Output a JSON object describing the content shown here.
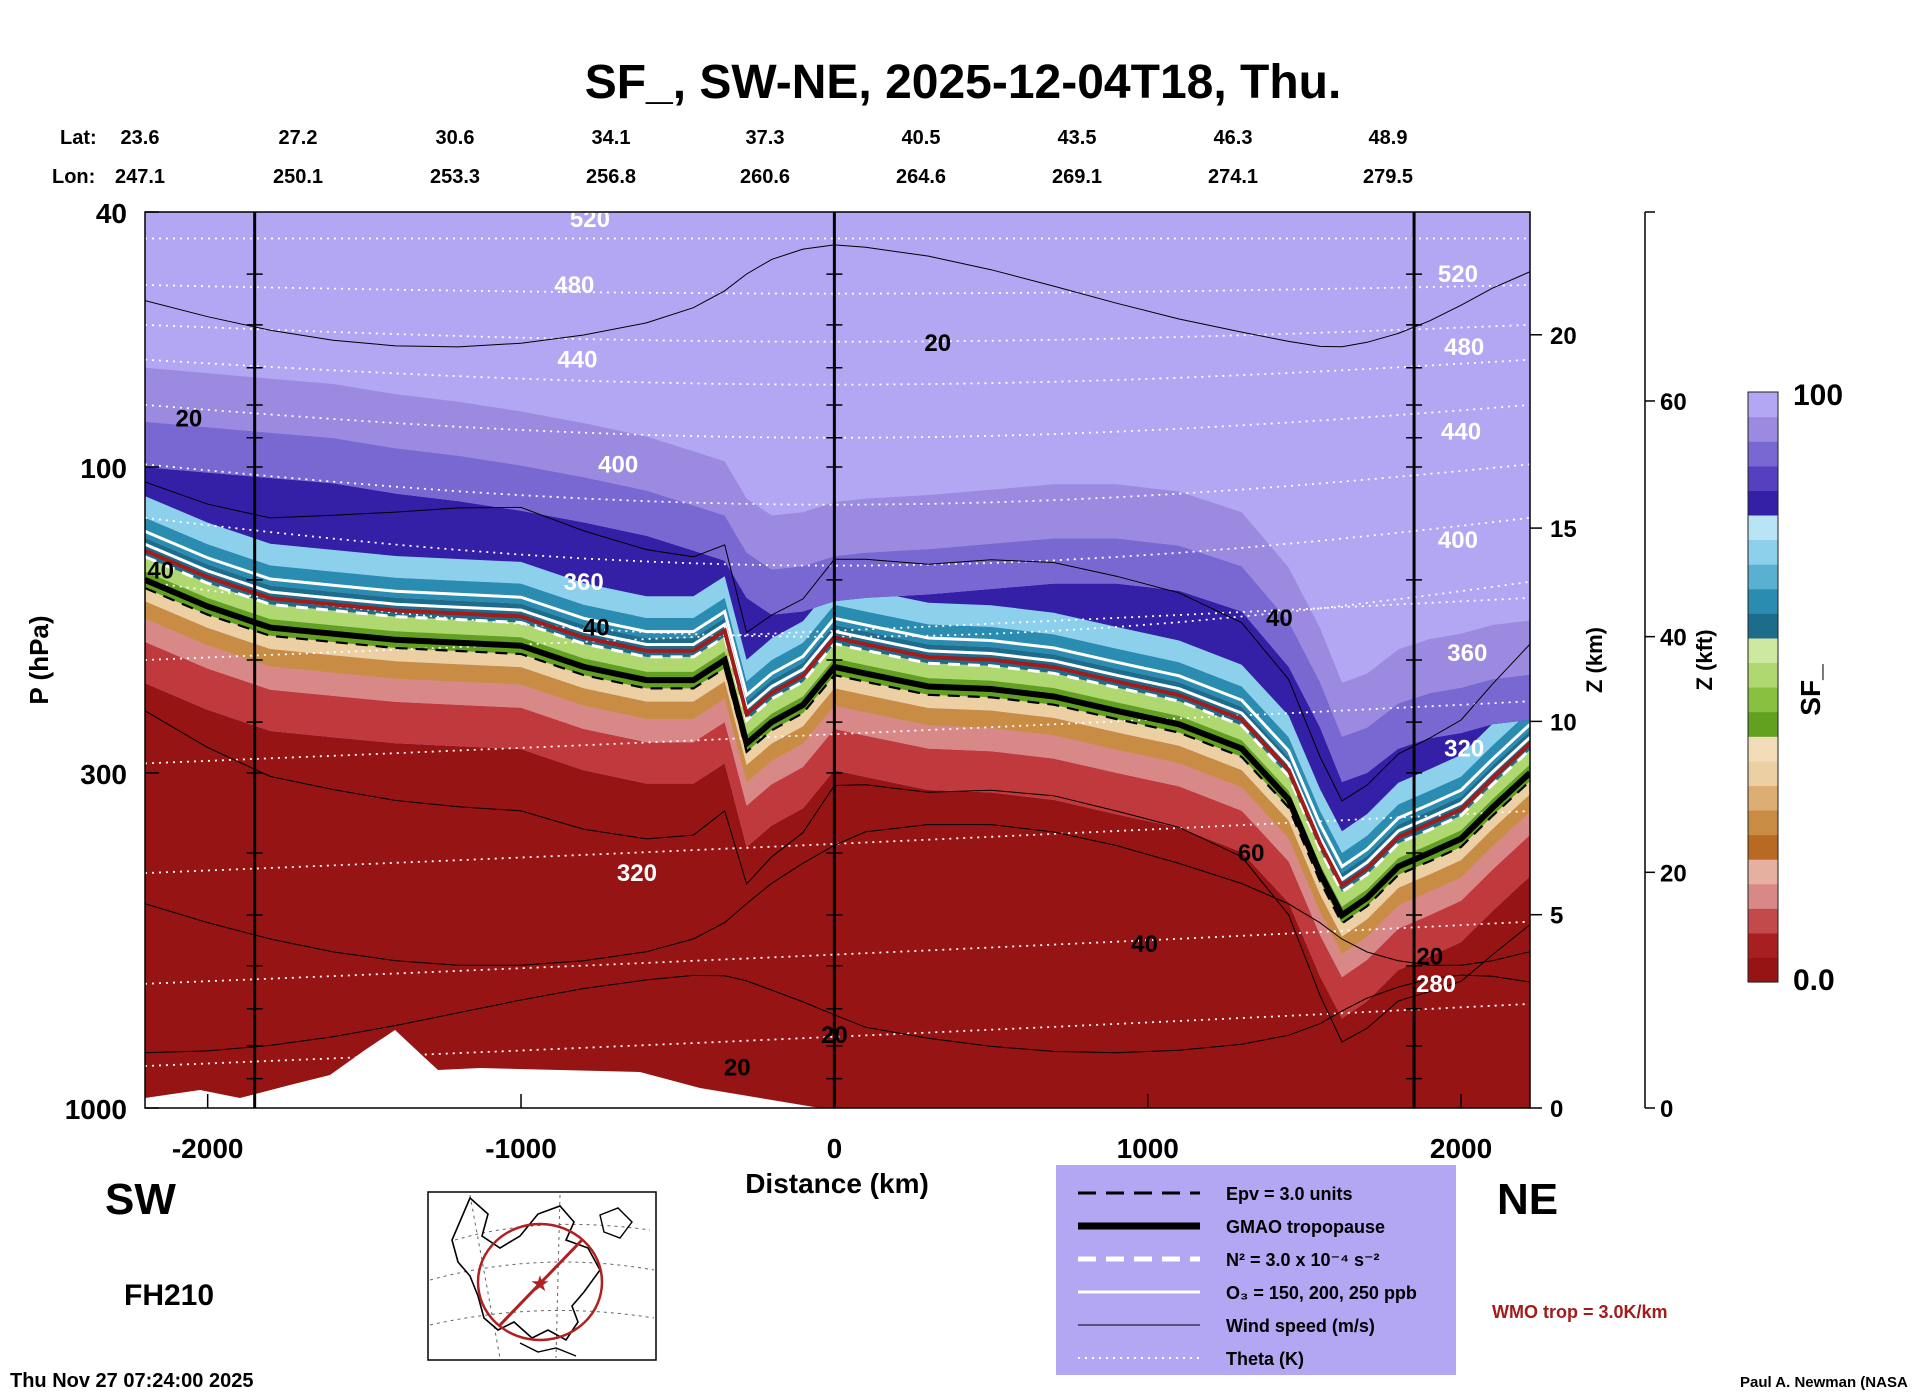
{
  "page": {
    "run_timestamp": "Thu Nov 27 07:24:00 2025",
    "credit": "Paul A. Newman (NASA",
    "forecast_hour": "FH210",
    "direction_left": "SW",
    "direction_right": "NE",
    "wmo_label": "WMO trop = 3.0K/km"
  },
  "legend": {
    "items": [
      {
        "label": "Epv = 3.0 units",
        "style": "dashed-black"
      },
      {
        "label": "GMAO tropopause",
        "style": "thick-black"
      },
      {
        "label": "N² = 3.0 x 10⁻⁴ s⁻²",
        "style": "dashed-white"
      },
      {
        "label": "O₃ = 150, 200, 250 ppb",
        "style": "solid-white"
      },
      {
        "label": "Wind speed (m/s)",
        "style": "thin-black"
      },
      {
        "label": "Theta (K)",
        "style": "dotted-white"
      }
    ],
    "background": "#b3a6f2"
  },
  "colors": {
    "tropopause_wmo": "#a31c1c",
    "background_upper": "#b3a6f2",
    "background_lower": "#971414"
  },
  "chart_data": {
    "type": "heatmap",
    "title": "SF_, SW-NE, 2025-12-04T18, Thu.",
    "xlabel": "Distance (km)",
    "ylabel": "P (hPa)",
    "y2label": "Z (km)",
    "y3label": "Z (kft)",
    "xlim": [
      -2200,
      2220
    ],
    "ylim": [
      1000,
      40
    ],
    "y_scale": "log",
    "x_ticks": [
      -2000,
      -1000,
      0,
      1000,
      2000
    ],
    "y_ticks": [
      1000,
      300,
      100,
      40
    ],
    "z_km_ticks": [
      0,
      5,
      10,
      15,
      20
    ],
    "z_kft_ticks": [
      0,
      20,
      40,
      60
    ],
    "lat_label": "Lat:",
    "lon_label": "Lon:",
    "latitudes": [
      "23.6",
      "27.2",
      "30.6",
      "34.1",
      "37.3",
      "40.5",
      "43.5",
      "46.3",
      "48.9"
    ],
    "longitudes": [
      "247.1",
      "250.1",
      "253.3",
      "256.8",
      "260.6",
      "264.6",
      "269.1",
      "274.1",
      "279.5"
    ],
    "vertical_lines_km": [
      -1850,
      0,
      1850
    ],
    "colorbar": {
      "label": "SF_",
      "min_label": "0.0",
      "max_label": "100",
      "stops": [
        "#971414",
        "#a81f1f",
        "#c34a4a",
        "#d98888",
        "#e6b0a0",
        "#b86a22",
        "#c98c44",
        "#dcae74",
        "#ecd0a4",
        "#f2dcb8",
        "#62a020",
        "#88c040",
        "#b0d870",
        "#cde9a0",
        "#1e6c8c",
        "#2a8cb0",
        "#5ab0d0",
        "#8cd0ec",
        "#b8e4f6",
        "#3420a6",
        "#5640c0",
        "#7a68d2",
        "#9b8ae0",
        "#b3a6f2"
      ]
    },
    "theta_labels": [
      {
        "text": "520",
        "x": -780,
        "p": 41
      },
      {
        "text": "480",
        "x": -830,
        "p": 52
      },
      {
        "text": "440",
        "x": -820,
        "p": 68
      },
      {
        "text": "400",
        "x": -690,
        "p": 99
      },
      {
        "text": "360",
        "x": -800,
        "p": 151
      },
      {
        "text": "320",
        "x": -630,
        "p": 430
      },
      {
        "text": "520",
        "x": 1990,
        "p": 50
      },
      {
        "text": "480",
        "x": 2010,
        "p": 65
      },
      {
        "text": "440",
        "x": 2000,
        "p": 88
      },
      {
        "text": "400",
        "x": 1990,
        "p": 130
      },
      {
        "text": "360",
        "x": 2020,
        "p": 195
      },
      {
        "text": "320",
        "x": 2010,
        "p": 275
      },
      {
        "text": "280",
        "x": 1920,
        "p": 640
      }
    ],
    "wind_labels": [
      {
        "text": "20",
        "x": -2060,
        "p": 84
      },
      {
        "text": "20",
        "x": 330,
        "p": 64
      },
      {
        "text": "40",
        "x": -2150,
        "p": 145
      },
      {
        "text": "40",
        "x": -760,
        "p": 178
      },
      {
        "text": "40",
        "x": 1420,
        "p": 172
      },
      {
        "text": "60",
        "x": 1330,
        "p": 400
      },
      {
        "text": "40",
        "x": 990,
        "p": 555
      },
      {
        "text": "20",
        "x": 1900,
        "p": 580
      },
      {
        "text": "20",
        "x": 0,
        "p": 770
      },
      {
        "text": "20",
        "x": -310,
        "p": 865
      }
    ]
  }
}
